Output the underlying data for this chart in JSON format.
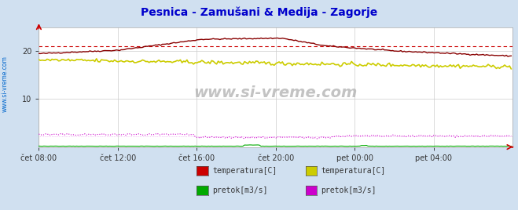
{
  "title": "Pesnica - Zamušani & Medija - Zagorje",
  "title_color": "#0000cc",
  "title_fontsize": 10,
  "bg_color": "#d0e0f0",
  "plot_bg_color": "#ffffff",
  "xlim": [
    0,
    288
  ],
  "ylim": [
    0,
    25
  ],
  "yticks": [
    10,
    20
  ],
  "xtick_labels": [
    "čet 08:00",
    "čet 12:00",
    "čet 16:00",
    "čet 20:00",
    "pet 00:00",
    "pet 04:00"
  ],
  "xtick_positions": [
    0,
    48,
    96,
    144,
    192,
    240
  ],
  "grid_color": "#cccccc",
  "watermark": "www.si-vreme.com",
  "ref_line_value": 21.1,
  "ref_line_color": "#cc0000",
  "legend_items": [
    {
      "color": "#cc0000",
      "label": "temperatura[C]"
    },
    {
      "color": "#00aa00",
      "label": "pretok[m3/s]"
    },
    {
      "color": "#cccc00",
      "label": "temperatura[C]"
    },
    {
      "color": "#cc00cc",
      "label": "pretok[m3/s]"
    }
  ],
  "pesnica_temp_color": "#880000",
  "pesnica_pretok_color": "#00aa00",
  "medija_temp_color": "#cccc00",
  "medija_pretok_color": "#cc00cc",
  "left_label": "www.si-vreme.com",
  "left_label_color": "#0066cc"
}
